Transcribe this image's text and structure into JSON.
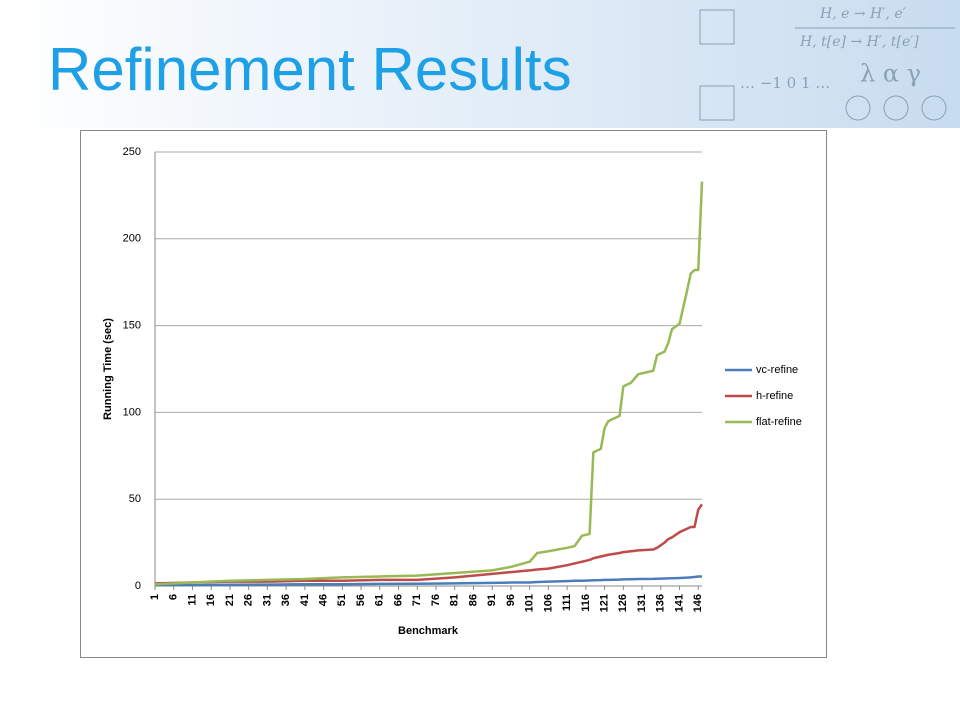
{
  "header": {
    "title": "Refinement Results",
    "decor": [
      "H, e → H′, e′",
      "H, t[e] → H′, t[e′]",
      "… −1  0  1 …",
      "λ α γ"
    ]
  },
  "chart_data": {
    "type": "line",
    "x_label": "Benchmark",
    "y_label": "Running Time (sec)",
    "x": [
      1,
      11,
      21,
      31,
      41,
      51,
      61,
      71,
      81,
      91,
      96,
      101,
      103,
      106,
      111,
      113,
      115,
      117,
      118,
      120,
      121,
      122,
      125,
      126,
      128,
      130,
      134,
      135,
      137,
      138,
      139,
      141,
      143,
      144,
      145,
      146,
      147
    ],
    "series": [
      {
        "name": "vc-refine",
        "color": "#4a7ebb",
        "values": [
          0.5,
          0.5,
          0.7,
          0.8,
          1,
          1,
          1.2,
          1.3,
          1.5,
          1.8,
          2,
          2,
          2.3,
          2.5,
          2.8,
          3,
          3,
          3.2,
          3.3,
          3.4,
          3.5,
          3.5,
          3.7,
          3.8,
          3.9,
          4,
          4.1,
          4.2,
          4.3,
          4.4,
          4.5,
          4.6,
          4.8,
          5,
          5.2,
          5.5,
          5.5
        ]
      },
      {
        "name": "h-refine",
        "color": "#be4b48",
        "values": [
          1.5,
          2,
          2.5,
          2.5,
          3,
          3,
          3.5,
          3.5,
          5,
          7,
          8,
          9,
          9.5,
          10,
          12,
          13,
          14,
          15,
          16,
          17,
          17.5,
          18,
          19,
          19.5,
          20,
          20.5,
          21,
          22,
          25,
          27,
          28,
          31,
          33,
          34,
          34,
          44,
          47
        ]
      },
      {
        "name": "flat-refine",
        "color": "#98b954",
        "values": [
          1,
          2,
          3,
          3.5,
          4,
          5,
          5.5,
          6,
          7.5,
          9,
          11,
          14,
          19,
          20,
          22,
          23,
          29,
          30,
          77,
          79,
          91,
          95,
          98,
          115,
          117,
          122,
          124,
          133,
          135,
          140,
          148,
          151,
          170,
          180,
          182,
          182,
          233
        ]
      }
    ],
    "xlim": [
      1,
      147
    ],
    "xticks": [
      1,
      6,
      11,
      16,
      21,
      26,
      31,
      36,
      41,
      46,
      51,
      56,
      61,
      66,
      71,
      76,
      81,
      86,
      91,
      96,
      101,
      106,
      111,
      116,
      121,
      126,
      131,
      136,
      141,
      146
    ],
    "ylim": [
      0,
      250
    ],
    "yticks": [
      0,
      50,
      100,
      150,
      200,
      250
    ],
    "grid": true,
    "legend": "right"
  }
}
